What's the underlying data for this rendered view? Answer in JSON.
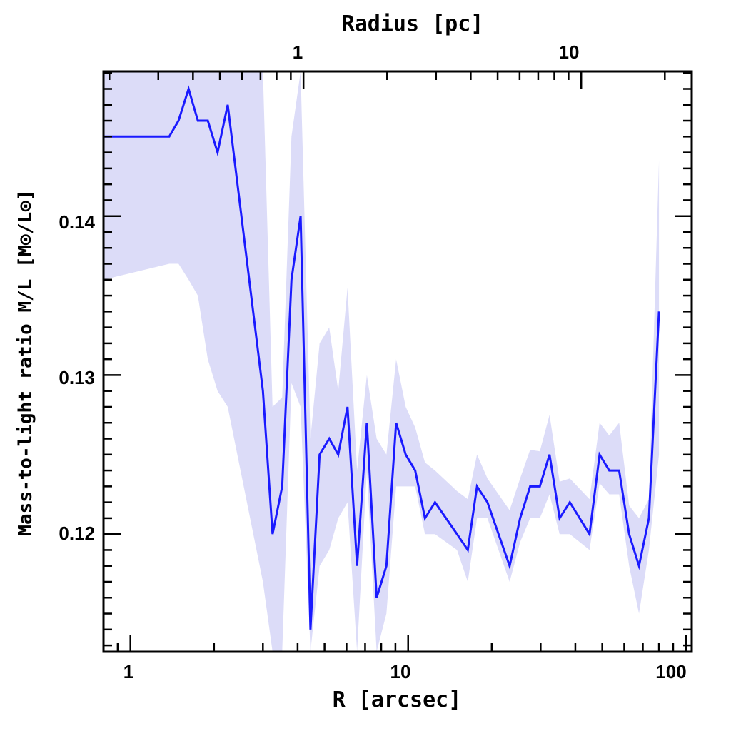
{
  "chart_data": {
    "type": "line",
    "title": "",
    "xlabel": "R [arcsec]",
    "ylabel": "Mass-to-light ratio M/L [M⊙/L⊙]",
    "top_xlabel": "Radius [pc]",
    "xscale": "log",
    "xlim": [
      0.8,
      105
    ],
    "ylim": [
      0.1126,
      0.1491
    ],
    "x_ticklabels": [
      "1",
      "10",
      "100"
    ],
    "y_ticklabels": [
      "0.12",
      "0.13",
      "0.14"
    ],
    "top_ticklabels": [
      "1",
      "10"
    ],
    "top_tick_positions_arcsec": [
      4.2,
      42
    ],
    "grid": false,
    "line_color": "#1a1aff",
    "band_color": "#dcdcf8",
    "series": [
      {
        "x": [
          0.8,
          1.38,
          1.49,
          1.62,
          1.75,
          1.9,
          2.06,
          2.24,
          3.0,
          3.25,
          3.52,
          3.8,
          4.1,
          4.45,
          4.8,
          5.2,
          5.6,
          6.05,
          6.55,
          7.1,
          7.7,
          8.35,
          9.05,
          9.8,
          10.6,
          11.5,
          12.5,
          15.0,
          16.4,
          17.7,
          19.3,
          23.2,
          25.3,
          27.5,
          29.8,
          32.3,
          35.1,
          38.2,
          45.0,
          48.9,
          53.0,
          57.5,
          62.5,
          67.8,
          73.6,
          80.0
        ],
        "y": [
          0.145,
          0.145,
          0.146,
          0.148,
          0.146,
          0.146,
          0.144,
          0.147,
          0.129,
          0.12,
          0.123,
          0.136,
          0.14,
          0.114,
          0.125,
          0.126,
          0.125,
          0.128,
          0.118,
          0.127,
          0.116,
          0.118,
          0.127,
          0.125,
          0.124,
          0.121,
          0.122,
          0.12,
          0.119,
          0.123,
          0.122,
          0.118,
          0.121,
          0.123,
          0.123,
          0.125,
          0.121,
          0.122,
          0.12,
          0.125,
          0.124,
          0.124,
          0.12,
          0.118,
          0.121,
          0.134
        ],
        "upper": [
          0.1491,
          0.1491,
          0.1491,
          0.1491,
          0.1491,
          0.1491,
          0.1491,
          0.1491,
          0.1491,
          0.128,
          0.1286,
          0.145,
          0.1491,
          0.126,
          0.132,
          0.133,
          0.129,
          0.1355,
          0.124,
          0.13,
          0.126,
          0.125,
          0.131,
          0.128,
          0.1267,
          0.1245,
          0.124,
          0.1227,
          0.1222,
          0.125,
          0.1235,
          0.1215,
          0.1235,
          0.1253,
          0.1252,
          0.1275,
          0.1233,
          0.1235,
          0.1222,
          0.127,
          0.1262,
          0.127,
          0.1218,
          0.121,
          0.1222,
          0.1435
        ],
        "lower": [
          0.136,
          0.137,
          0.137,
          0.136,
          0.135,
          0.131,
          0.129,
          0.128,
          0.117,
          0.1126,
          0.1126,
          0.1295,
          0.128,
          0.1126,
          0.118,
          0.119,
          0.121,
          0.122,
          0.1126,
          0.124,
          0.1126,
          0.115,
          0.123,
          0.123,
          0.123,
          0.12,
          0.12,
          0.119,
          0.117,
          0.121,
          0.121,
          0.117,
          0.1195,
          0.121,
          0.121,
          0.1225,
          0.12,
          0.12,
          0.119,
          0.1232,
          0.1225,
          0.1225,
          0.118,
          0.115,
          0.119,
          0.125
        ]
      }
    ]
  }
}
